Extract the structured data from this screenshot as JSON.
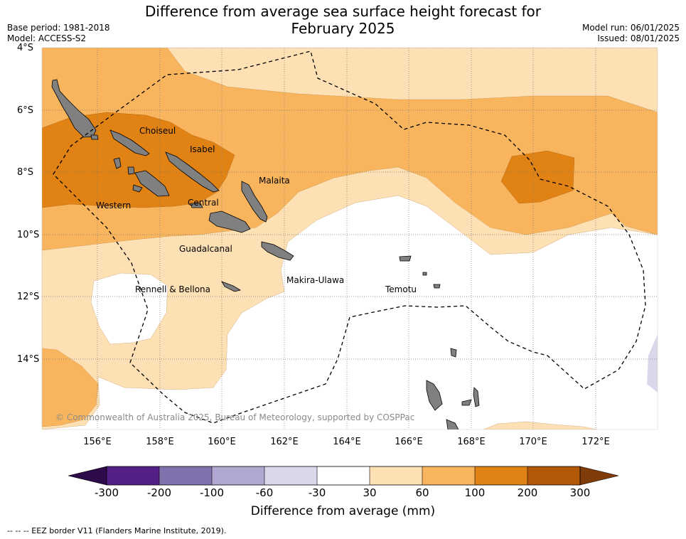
{
  "title_line1": "Difference from average sea surface height forecast for",
  "title_line2": "February 2025",
  "base_period": "Base period: 1981-2018",
  "model": "Model: ACCESS-S2",
  "model_run": "Model run: 06/01/2025",
  "issued": "Issued: 08/01/2025",
  "lat_labels": [
    "4°S",
    "6°S",
    "8°S",
    "10°S",
    "12°S",
    "14°S"
  ],
  "lon_labels": [
    "156°E",
    "158°E",
    "160°E",
    "162°E",
    "164°E",
    "166°E",
    "168°E",
    "170°E",
    "172°E"
  ],
  "places": {
    "choiseul": "Choiseul",
    "isabel": "Isabel",
    "malaita": "Malaita",
    "western": "Western",
    "central": "Central",
    "guadalcanal": "Guadalcanal",
    "makira_ulawa": "Makira-Ulawa",
    "rennell_bellona": "Rennell & Bellona",
    "temotu": "Temotu"
  },
  "copyright": "© Commonwealth of Australia 2025, Bureau of Meteorology, supported by COSPPac",
  "colorbar": {
    "labels": [
      "-300",
      "-200",
      "-100",
      "-60",
      "-30",
      "30",
      "60",
      "100",
      "200",
      "300"
    ],
    "colors": [
      "#2d0a4a",
      "#542088",
      "#8072ac",
      "#b0a8d0",
      "#d8d8ea",
      "#ffffff",
      "#fde0b4",
      "#f9b55e",
      "#e08214",
      "#b35806",
      "#7f3b08"
    ],
    "title": "Difference from average (mm)"
  },
  "footer": "--  --  -- EEZ border V11 (Flanders Marine Institute, 2019)."
}
